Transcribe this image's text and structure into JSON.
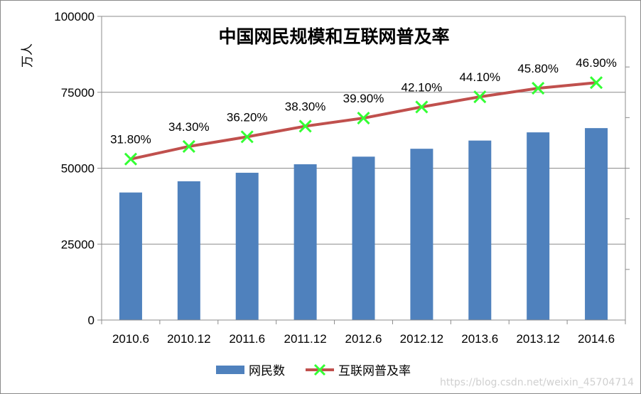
{
  "chart_data": {
    "type": "bar",
    "title": "中国网民规模和互联网普及率",
    "ylabel": "万人",
    "categories": [
      "2010.6",
      "2010.12",
      "2011.6",
      "2011.12",
      "2012.6",
      "2012.12",
      "2013.6",
      "2013.12",
      "2014.6"
    ],
    "ylim": [
      0,
      100000
    ],
    "yticks": [
      "0",
      "25000",
      "50000",
      "75000",
      "100000"
    ],
    "series": [
      {
        "name": "网民数",
        "type": "bar",
        "color": "#4f81bd",
        "values": [
          42000,
          45700,
          48500,
          51300,
          53800,
          56400,
          59100,
          61800,
          63200
        ]
      },
      {
        "name": "互联网普及率",
        "type": "line",
        "color": "#c0504d",
        "marker_color": "#33ff33",
        "values": [
          31.8,
          34.3,
          36.2,
          38.3,
          39.9,
          42.1,
          44.1,
          45.8,
          46.9
        ],
        "labels": [
          "31.80%",
          "34.30%",
          "36.20%",
          "38.30%",
          "39.90%",
          "42.10%",
          "44.10%",
          "45.80%",
          "46.90%"
        ]
      }
    ],
    "grid": true,
    "legend": "bottom"
  },
  "watermark": "https://blog.csdn.net/weixin_45704714"
}
